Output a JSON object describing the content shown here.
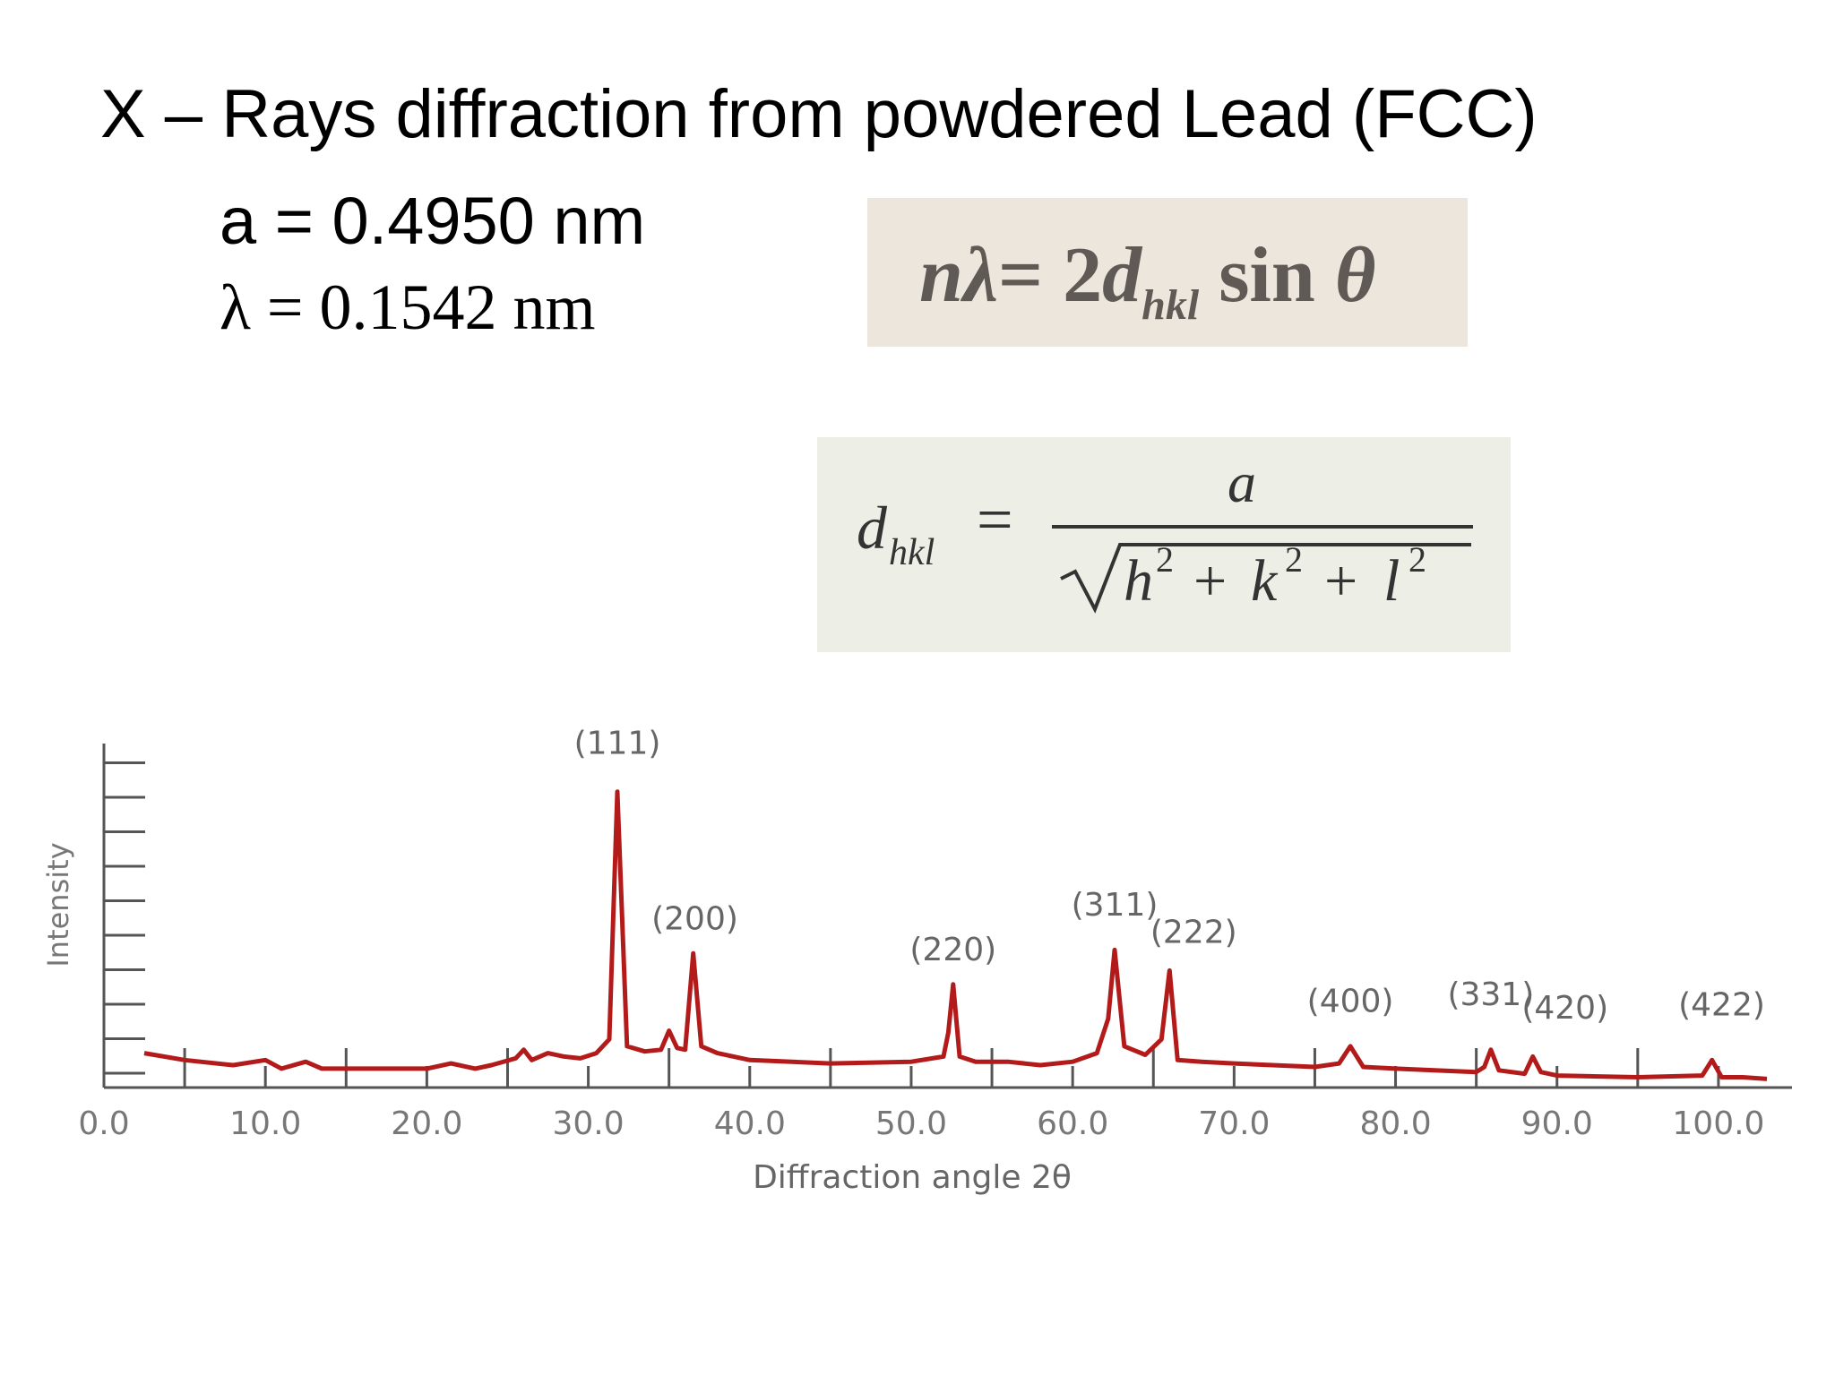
{
  "slide": {
    "title": "X – Rays diffraction from powdered Lead (FCC)",
    "lattice_parameter": "a = 0.4950 nm",
    "wavelength": "λ = 0.1542 nm",
    "bragg_law": "nλ= 2d_hkl sin θ",
    "d_spacing_formula": "d_hkl = a / √(h² + k² + l²)"
  },
  "chart_data": {
    "type": "line",
    "xlabel": "Diffraction angle 2θ",
    "ylabel": "Intensity",
    "xlim": [
      0,
      104
    ],
    "ylim": [
      0,
      100
    ],
    "x_ticks": [
      "0.0",
      "10.0",
      "20.0",
      "30.0",
      "40.0",
      "50.0",
      "60.0",
      "70.0",
      "80.0",
      "90.0",
      "100.0"
    ],
    "grid": false,
    "line_color": "#b31b1b",
    "series": [
      {
        "x": [
          2.5,
          5,
          8,
          10,
          11,
          12.5,
          13.5,
          16,
          20,
          21.5,
          23,
          24,
          25.5,
          26,
          26.5,
          27.5,
          28.5,
          29.5,
          30.5,
          31.3,
          31.8,
          32.4,
          33.5,
          34.5,
          35,
          35.5,
          36,
          36.5,
          37,
          38,
          40,
          45,
          50,
          52,
          52.3,
          52.6,
          53,
          54,
          56,
          58,
          60,
          61.5,
          62.2,
          62.6,
          63.2,
          64.5,
          65.5,
          66,
          66.5,
          68,
          70,
          75,
          76.5,
          77.2,
          78,
          80,
          85,
          85.5,
          85.9,
          86.4,
          88,
          88.5,
          89,
          90,
          95,
          99,
          99.6,
          100.2,
          101.5,
          103
        ],
        "y": [
          10,
          8,
          6.5,
          8,
          5.5,
          7.5,
          5.5,
          5.5,
          5.5,
          7,
          5.5,
          6.5,
          8.5,
          11,
          8,
          10,
          9,
          8.5,
          10,
          14,
          86,
          12,
          10.5,
          11,
          16.5,
          11.5,
          11,
          39,
          12,
          10,
          8,
          7,
          7.5,
          9,
          16,
          30,
          9,
          7.5,
          7.5,
          6.5,
          7.5,
          10,
          20,
          40,
          12,
          9.5,
          14,
          34,
          8,
          7.5,
          7,
          6,
          7,
          12,
          6,
          5.5,
          4.5,
          6,
          11,
          5,
          4,
          9,
          4.5,
          3.5,
          3,
          3.5,
          8,
          3,
          3,
          2.5
        ]
      }
    ],
    "annotations": [
      {
        "label": "(111)",
        "x": 31.8,
        "y": 97
      },
      {
        "label": "(200)",
        "x": 36.6,
        "y": 46
      },
      {
        "label": "(220)",
        "x": 52.6,
        "y": 37
      },
      {
        "label": "(311)",
        "x": 62.6,
        "y": 50
      },
      {
        "label": "(222)",
        "x": 67.5,
        "y": 42
      },
      {
        "label": "(400)",
        "x": 77.2,
        "y": 22
      },
      {
        "label": "(331)",
        "x": 85.9,
        "y": 24
      },
      {
        "label": "(420)",
        "x": 90.5,
        "y": 20
      },
      {
        "label": "(422)",
        "x": 100.2,
        "y": 21
      }
    ]
  }
}
